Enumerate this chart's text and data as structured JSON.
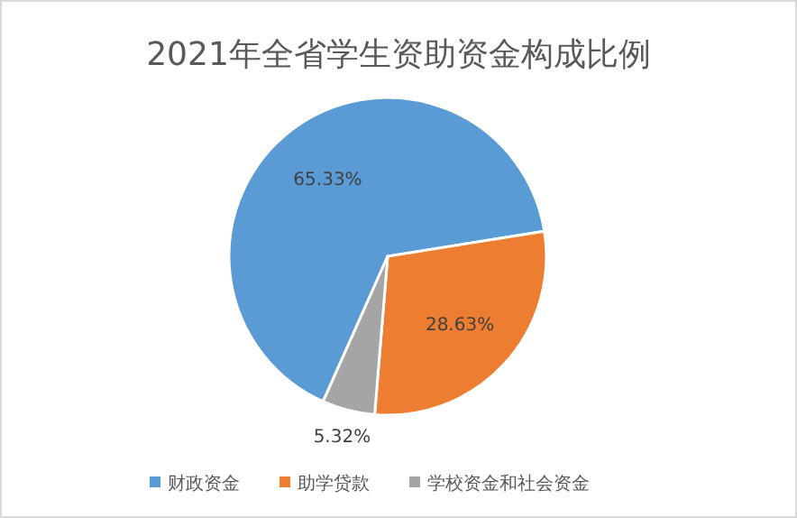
{
  "chart_data": {
    "type": "pie",
    "title": "2021年全省学生资助资金构成比例",
    "categories": [
      "财政资金",
      "助学贷款",
      "学校资金和社会资金"
    ],
    "values": [
      65.33,
      28.63,
      5.32
    ],
    "colors": [
      "#5b9bd5",
      "#ed7d31",
      "#a5a5a5"
    ],
    "value_labels": [
      "65.33%",
      "28.63%",
      "5.32%"
    ],
    "legend": "bottom"
  }
}
